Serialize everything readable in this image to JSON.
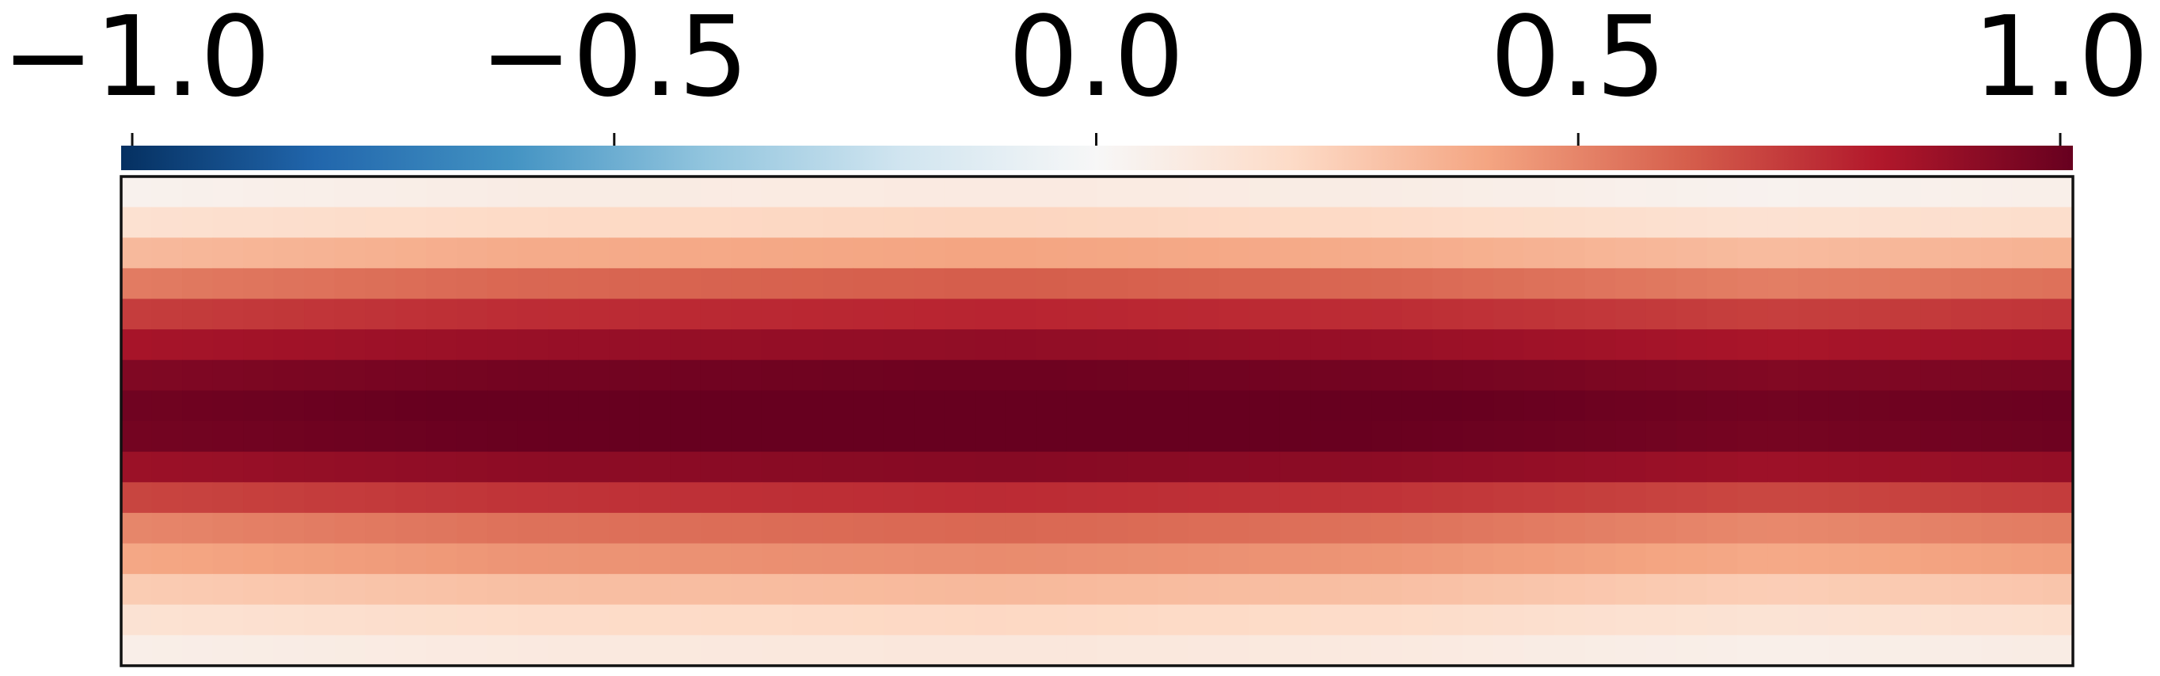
{
  "chart_data": {
    "type": "heatmap",
    "title": "",
    "xlabel": "",
    "ylabel": "",
    "colormap": "RdBu_r",
    "colorbar": {
      "placement": "top",
      "range": [
        -1.0,
        1.0
      ],
      "ticks": [
        -1.0,
        -0.5,
        0.0,
        0.5,
        1.0
      ],
      "tick_labels": [
        "−1.0",
        "−0.5",
        "0.0",
        "0.5",
        "1.0"
      ],
      "colors": [
        "#053061",
        "#2166ac",
        "#4393c3",
        "#92c5de",
        "#d1e5f0",
        "#f7f7f7",
        "#fddbc7",
        "#f4a582",
        "#d6604d",
        "#b2182b",
        "#67001f"
      ]
    },
    "grid": {
      "row_count": 16,
      "column_count": 64,
      "row_profile": [
        0.06,
        0.18,
        0.35,
        0.55,
        0.72,
        0.85,
        0.95,
        0.99,
        0.98,
        0.88,
        0.7,
        0.52,
        0.42,
        0.28,
        0.17,
        0.08
      ],
      "column_modulation": [
        {
          "center": 0.0,
          "amplitude": -0.03
        },
        {
          "center": 0.2,
          "amplitude": 0.03
        },
        {
          "center": 0.45,
          "amplitude": 0.06
        },
        {
          "center": 0.65,
          "amplitude": 0.03
        },
        {
          "center": 0.85,
          "amplitude": -0.04
        },
        {
          "center": 1.0,
          "amplitude": 0.0
        }
      ]
    }
  }
}
